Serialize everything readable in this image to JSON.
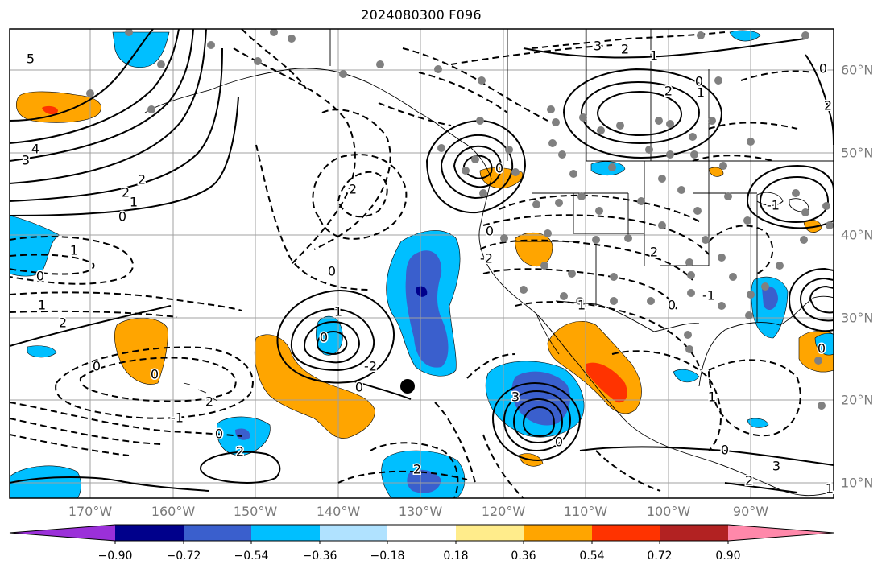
{
  "title": "2024080300 F096",
  "longitude_labels": [
    "170°W",
    "160°W",
    "150°W",
    "140°W",
    "130°W",
    "120°W",
    "110°W",
    "100°W",
    "90°W"
  ],
  "latitude_labels": [
    "60°N",
    "50°N",
    "40°N",
    "30°N",
    "20°N",
    "10°N"
  ],
  "colorbar": {
    "tick_labels": [
      "−0.90",
      "−0.72",
      "−0.54",
      "−0.36",
      "−0.18",
      "0.18",
      "0.36",
      "0.54",
      "0.72",
      "0.90"
    ],
    "colors": [
      "#9b30d9",
      "#00008b",
      "#3a5fcd",
      "#00bfff",
      "#b0e2ff",
      "#ffffff",
      "#ffec8b",
      "#ffa500",
      "#ff3300",
      "#b22222",
      "#ff88aa"
    ]
  },
  "contour_labels": [
    "5",
    "4",
    "3",
    "2",
    "1",
    "0",
    "2",
    "1",
    "0",
    "1",
    "2",
    "0",
    "0",
    "-1",
    "2",
    "0",
    "2",
    "2",
    "1",
    "0",
    "-2",
    "0",
    "0",
    "2",
    "0",
    "0",
    "-2",
    "3",
    "2",
    "1",
    "0",
    "1",
    "2",
    "0",
    "2",
    "3",
    "0",
    "1",
    "2",
    "0",
    "-1",
    "-1",
    "0",
    "1",
    "0",
    "3",
    "2",
    "1"
  ],
  "colors": {
    "land_outline": "#000000",
    "grid": "#a0a0a0",
    "station_dot": "#808080",
    "marker": "#000000"
  }
}
